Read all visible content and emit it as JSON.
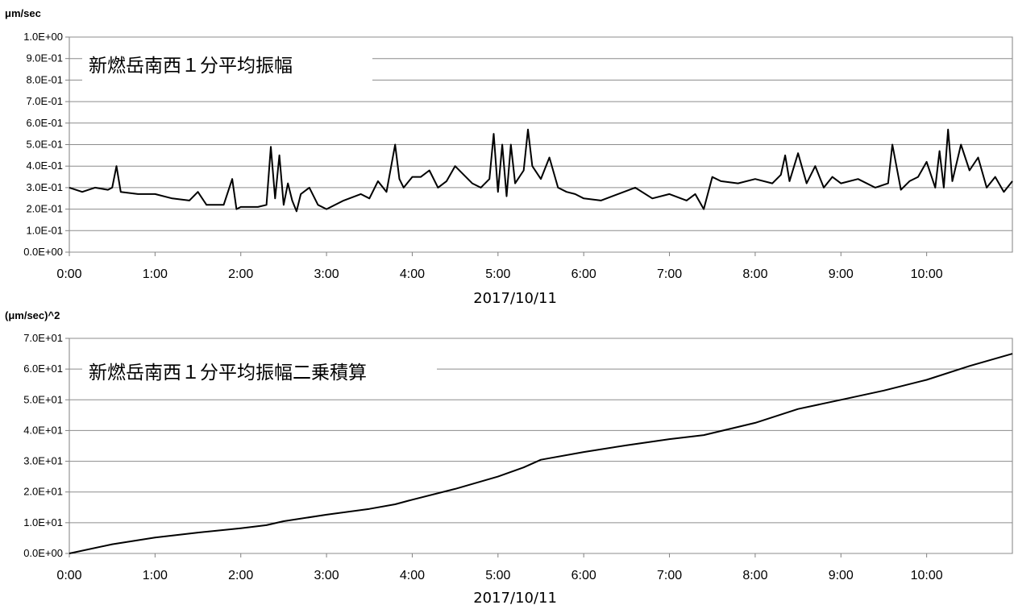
{
  "chart_data": [
    {
      "type": "line",
      "title": "新燃岳南西１分平均振幅",
      "ylabel": "μm/sec",
      "xlabel": "2017/10/11",
      "ylim": [
        0,
        1.0
      ],
      "xlim_hours": [
        0,
        11
      ],
      "y_ticks": [
        "0.0E+00",
        "1.0E-01",
        "2.0E-01",
        "3.0E-01",
        "4.0E-01",
        "5.0E-01",
        "6.0E-01",
        "7.0E-01",
        "8.0E-01",
        "9.0E-01",
        "1.0E+00"
      ],
      "x_ticks": [
        "0:00",
        "1:00",
        "2:00",
        "3:00",
        "4:00",
        "5:00",
        "6:00",
        "7:00",
        "8:00",
        "9:00",
        "10:00"
      ],
      "grid": true,
      "series": [
        {
          "x": [
            0,
            0.15,
            0.3,
            0.45,
            0.5,
            0.55,
            0.6,
            0.8,
            1.0,
            1.2,
            1.4,
            1.5,
            1.6,
            1.8,
            1.9,
            1.95,
            2.0,
            2.2,
            2.3,
            2.35,
            2.4,
            2.45,
            2.5,
            2.55,
            2.6,
            2.65,
            2.7,
            2.8,
            2.9,
            3.0,
            3.2,
            3.4,
            3.5,
            3.6,
            3.7,
            3.8,
            3.85,
            3.9,
            4.0,
            4.1,
            4.2,
            4.3,
            4.4,
            4.5,
            4.6,
            4.7,
            4.8,
            4.9,
            4.95,
            5.0,
            5.05,
            5.1,
            5.15,
            5.2,
            5.3,
            5.35,
            5.4,
            5.5,
            5.6,
            5.7,
            5.8,
            5.9,
            6.0,
            6.2,
            6.4,
            6.6,
            6.8,
            7.0,
            7.2,
            7.3,
            7.4,
            7.5,
            7.6,
            7.8,
            8.0,
            8.2,
            8.3,
            8.35,
            8.4,
            8.5,
            8.6,
            8.7,
            8.8,
            8.9,
            9.0,
            9.2,
            9.4,
            9.55,
            9.6,
            9.7,
            9.8,
            9.9,
            10.0,
            10.1,
            10.15,
            10.2,
            10.25,
            10.3,
            10.4,
            10.5,
            10.6,
            10.7,
            10.8,
            10.9,
            11.0
          ],
          "values": [
            0.3,
            0.28,
            0.3,
            0.29,
            0.3,
            0.4,
            0.28,
            0.27,
            0.27,
            0.25,
            0.24,
            0.28,
            0.22,
            0.22,
            0.34,
            0.2,
            0.21,
            0.21,
            0.22,
            0.49,
            0.25,
            0.45,
            0.22,
            0.32,
            0.24,
            0.19,
            0.27,
            0.3,
            0.22,
            0.2,
            0.24,
            0.27,
            0.25,
            0.33,
            0.28,
            0.5,
            0.34,
            0.3,
            0.35,
            0.35,
            0.38,
            0.3,
            0.33,
            0.4,
            0.36,
            0.32,
            0.3,
            0.34,
            0.55,
            0.28,
            0.5,
            0.26,
            0.5,
            0.32,
            0.38,
            0.57,
            0.4,
            0.34,
            0.44,
            0.3,
            0.28,
            0.27,
            0.25,
            0.24,
            0.27,
            0.3,
            0.25,
            0.27,
            0.24,
            0.27,
            0.2,
            0.35,
            0.33,
            0.32,
            0.34,
            0.32,
            0.36,
            0.45,
            0.33,
            0.46,
            0.32,
            0.4,
            0.3,
            0.35,
            0.32,
            0.34,
            0.3,
            0.32,
            0.5,
            0.29,
            0.33,
            0.35,
            0.42,
            0.3,
            0.47,
            0.3,
            0.57,
            0.33,
            0.5,
            0.38,
            0.44,
            0.3,
            0.35,
            0.28,
            0.33
          ]
        }
      ]
    },
    {
      "type": "line",
      "title": "新燃岳南西１分平均振幅二乗積算",
      "ylabel": "(μm/sec)^2",
      "xlabel": "2017/10/11",
      "ylim": [
        0,
        70
      ],
      "xlim_hours": [
        0,
        11
      ],
      "y_ticks": [
        "0.0E+00",
        "1.0E+01",
        "2.0E+01",
        "3.0E+01",
        "4.0E+01",
        "5.0E+01",
        "6.0E+01",
        "7.0E+01"
      ],
      "x_ticks": [
        "0:00",
        "1:00",
        "2:00",
        "3:00",
        "4:00",
        "5:00",
        "6:00",
        "7:00",
        "8:00",
        "9:00",
        "10:00"
      ],
      "grid": true,
      "series": [
        {
          "x": [
            0,
            0.5,
            1.0,
            1.5,
            2.0,
            2.3,
            2.5,
            3.0,
            3.5,
            3.8,
            4.0,
            4.5,
            5.0,
            5.3,
            5.5,
            6.0,
            6.5,
            7.0,
            7.4,
            8.0,
            8.5,
            9.0,
            9.5,
            10.0,
            10.5,
            11.0
          ],
          "values": [
            0,
            3,
            5.2,
            6.8,
            8.2,
            9.2,
            10.5,
            12.6,
            14.5,
            16,
            17.5,
            21,
            25,
            28,
            30.5,
            33,
            35.2,
            37.2,
            38.5,
            42.5,
            47,
            50,
            53,
            56.5,
            61,
            65
          ]
        }
      ]
    }
  ]
}
